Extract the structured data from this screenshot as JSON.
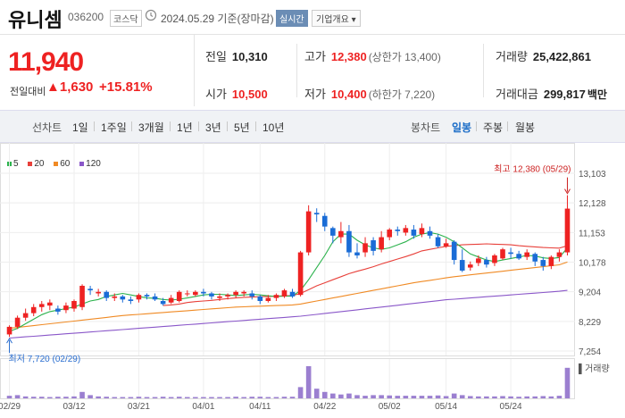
{
  "header": {
    "name": "유니셈",
    "code": "036200",
    "market": "코스닥",
    "date": "2024.05.29",
    "basis": "기준(장마감)",
    "live_label": "실시간",
    "info_label": "기업개요 ▾"
  },
  "price": {
    "current": "11,940",
    "vs_label": "전일대비",
    "change": "▲1,630",
    "pct": "+15.81%"
  },
  "stats": {
    "prev_label": "전일",
    "prev": "10,310",
    "open_label": "시가",
    "open": "10,500",
    "high_label": "고가",
    "high": "12,380",
    "high_note": "(상한가 13,400)",
    "low_label": "저가",
    "low": "10,400",
    "low_note": "(하한가 7,220)",
    "volume_label": "거래량",
    "volume": "25,422,861",
    "amount_label": "거래대금",
    "amount": "299,817",
    "amount_unit": "백만"
  },
  "period_tabs": {
    "lead": "선차트",
    "items": [
      "1일",
      "1주일",
      "3개월",
      "1년",
      "3년",
      "5년",
      "10년"
    ],
    "lead2": "봉차트",
    "items2": [
      "일봉",
      "주봉",
      "월봉"
    ],
    "active2": "일봉"
  },
  "chart_data": {
    "type": "candlestick",
    "legend": [
      {
        "name": "5",
        "color": "#2bb24c"
      },
      {
        "name": "20",
        "color": "#e8403a"
      },
      {
        "name": "60",
        "color": "#f08a24"
      },
      {
        "name": "120",
        "color": "#8a57c9"
      }
    ],
    "y_ticks": [
      "13,103",
      "12,128",
      "11,153",
      "10,178",
      "9,204",
      "8,229",
      "7,254"
    ],
    "x_ticks": [
      "02/29",
      "03/12",
      "03/21",
      "04/01",
      "04/11",
      "04/22",
      "05/02",
      "05/14",
      "05/24"
    ],
    "ylim": [
      7254,
      13103
    ],
    "high_annotation": "최고 12,380 (05/29)",
    "low_annotation": "최저 7,720 (02/29)",
    "volume_label": "거래량",
    "candles": [
      [
        7800,
        8050,
        7720,
        8100
      ],
      [
        8050,
        8350,
        7980,
        8420
      ],
      [
        8350,
        8500,
        8250,
        8650
      ],
      [
        8500,
        8700,
        8400,
        8800
      ],
      [
        8700,
        8800,
        8550,
        8900
      ],
      [
        8750,
        8850,
        8600,
        8950
      ],
      [
        8650,
        8550,
        8450,
        8750
      ],
      [
        8600,
        8750,
        8500,
        8850
      ],
      [
        8650,
        8900,
        8550,
        8950
      ],
      [
        8700,
        9400,
        8600,
        9450
      ],
      [
        9300,
        9250,
        9100,
        9400
      ],
      [
        9150,
        9200,
        9050,
        9300
      ],
      [
        9200,
        9000,
        8900,
        9250
      ],
      [
        9000,
        9050,
        8900,
        9150
      ],
      [
        9050,
        8950,
        8850,
        9100
      ],
      [
        8950,
        8900,
        8800,
        9050
      ],
      [
        8950,
        9100,
        8850,
        9150
      ],
      [
        9100,
        9050,
        8950,
        9150
      ],
      [
        9050,
        8950,
        8900,
        9150
      ],
      [
        8900,
        8800,
        8750,
        9000
      ],
      [
        8850,
        9000,
        8800,
        9100
      ],
      [
        8900,
        9200,
        8850,
        9250
      ],
      [
        9150,
        9150,
        9050,
        9250
      ],
      [
        9100,
        9200,
        9050,
        9250
      ],
      [
        9200,
        9150,
        9050,
        9300
      ],
      [
        9150,
        9050,
        8950,
        9200
      ],
      [
        9000,
        9050,
        8900,
        9150
      ],
      [
        9050,
        9100,
        8950,
        9150
      ],
      [
        9100,
        9200,
        9000,
        9250
      ],
      [
        9150,
        9200,
        9050,
        9250
      ],
      [
        9150,
        9050,
        8950,
        9250
      ],
      [
        9050,
        8900,
        8800,
        9100
      ],
      [
        8900,
        9000,
        8850,
        9100
      ],
      [
        9000,
        9100,
        8900,
        9150
      ],
      [
        9050,
        9250,
        9000,
        9300
      ],
      [
        9200,
        9050,
        9000,
        9300
      ],
      [
        9100,
        10500,
        9050,
        10550
      ],
      [
        10500,
        11850,
        10400,
        12050
      ],
      [
        11800,
        11750,
        11500,
        11950
      ],
      [
        11700,
        11350,
        11200,
        11800
      ],
      [
        11300,
        11050,
        10800,
        11350
      ],
      [
        11000,
        11200,
        10800,
        11500
      ],
      [
        11200,
        10500,
        10350,
        11400
      ],
      [
        10500,
        10400,
        10300,
        10800
      ],
      [
        10500,
        10800,
        10350,
        11000
      ],
      [
        10900,
        10550,
        10400,
        11000
      ],
      [
        10600,
        11000,
        10500,
        11200
      ],
      [
        11000,
        11250,
        10900,
        11300
      ],
      [
        11250,
        11200,
        11050,
        11350
      ],
      [
        11150,
        11300,
        11050,
        11400
      ],
      [
        11250,
        11050,
        10950,
        11400
      ],
      [
        11100,
        11300,
        11000,
        11450
      ],
      [
        11200,
        11050,
        10950,
        11350
      ],
      [
        11000,
        10700,
        10650,
        11100
      ],
      [
        10700,
        10800,
        10650,
        10950
      ],
      [
        10850,
        10250,
        10100,
        10900
      ],
      [
        10250,
        9900,
        9850,
        10600
      ],
      [
        10000,
        10100,
        9900,
        10200
      ],
      [
        10150,
        10300,
        10050,
        10400
      ],
      [
        10250,
        10100,
        10000,
        10350
      ],
      [
        10150,
        10400,
        10050,
        10450
      ],
      [
        10300,
        10600,
        10250,
        10650
      ],
      [
        10500,
        10450,
        10300,
        10650
      ],
      [
        10450,
        10300,
        10250,
        10550
      ],
      [
        10350,
        10500,
        10250,
        10600
      ],
      [
        10450,
        10200,
        10050,
        10500
      ],
      [
        10250,
        10050,
        9900,
        10350
      ],
      [
        10050,
        10350,
        9950,
        10400
      ],
      [
        10350,
        10500,
        10200,
        10600
      ],
      [
        10500,
        11940,
        10400,
        12380
      ]
    ],
    "ma5": [
      7900,
      8000,
      8150,
      8300,
      8450,
      8550,
      8600,
      8650,
      8700,
      8800,
      8900,
      8950,
      9050,
      9100,
      9150,
      9100,
      9050,
      9000,
      8990,
      8950,
      8930,
      8960,
      9000,
      9050,
      9100,
      9120,
      9120,
      9100,
      9080,
      9100,
      9120,
      9100,
      9070,
      9050,
      9060,
      9060,
      9250,
      9600,
      10000,
      10400,
      10850,
      11100,
      11100,
      10900,
      10750,
      10650,
      10600,
      10650,
      10750,
      10850,
      11000,
      11100,
      11150,
      11100,
      11000,
      10850,
      10650,
      10450,
      10350,
      10250,
      10200,
      10250,
      10300,
      10350,
      10400,
      10380,
      10320,
      10300,
      10330,
      10650
    ],
    "ma20": [
      null,
      null,
      null,
      null,
      null,
      null,
      null,
      null,
      null,
      null,
      null,
      null,
      null,
      null,
      null,
      null,
      null,
      null,
      null,
      8750,
      8770,
      8800,
      8850,
      8880,
      8900,
      8920,
      8950,
      8980,
      9000,
      9020,
      9030,
      9040,
      9050,
      9060,
      9070,
      9080,
      9150,
      9270,
      9400,
      9500,
      9600,
      9700,
      9800,
      9880,
      9950,
      10030,
      10120,
      10200,
      10280,
      10360,
      10450,
      10550,
      10600,
      10650,
      10700,
      10720,
      10750,
      10760,
      10770,
      10780,
      10770,
      10760,
      10750,
      10720,
      10700,
      10680,
      10660,
      10650,
      10640,
      10720
    ],
    "ma60": [
      8000,
      8030,
      8060,
      8090,
      8120,
      8150,
      8180,
      8210,
      8240,
      8270,
      8300,
      8330,
      8360,
      8390,
      8420,
      8440,
      8460,
      8480,
      8500,
      8520,
      8540,
      8560,
      8580,
      8600,
      8620,
      8640,
      8660,
      8680,
      8700,
      8710,
      8720,
      8730,
      8740,
      8750,
      8760,
      8770,
      8800,
      8850,
      8900,
      8950,
      9000,
      9050,
      9100,
      9150,
      9200,
      9250,
      9300,
      9350,
      9400,
      9450,
      9500,
      9540,
      9580,
      9620,
      9660,
      9700,
      9730,
      9760,
      9790,
      9820,
      9850,
      9880,
      9910,
      9940,
      9970,
      10000,
      10030,
      10060,
      10090,
      10180
    ],
    "ma120": [
      7680,
      7700,
      7720,
      7740,
      7760,
      7780,
      7800,
      7820,
      7840,
      7860,
      7880,
      7900,
      7920,
      7940,
      7960,
      7980,
      8000,
      8020,
      8040,
      8060,
      8080,
      8100,
      8120,
      8140,
      8160,
      8180,
      8200,
      8220,
      8240,
      8260,
      8280,
      8300,
      8320,
      8340,
      8360,
      8380,
      8400,
      8430,
      8460,
      8490,
      8520,
      8550,
      8580,
      8610,
      8640,
      8670,
      8700,
      8730,
      8760,
      8790,
      8820,
      8850,
      8880,
      8910,
      8940,
      8960,
      8980,
      9000,
      9020,
      9040,
      9060,
      9080,
      9100,
      9120,
      9140,
      9160,
      9180,
      9200,
      9220,
      9250
    ],
    "volume": [
      0.08,
      0.1,
      0.06,
      0.05,
      0.05,
      0.04,
      0.05,
      0.05,
      0.06,
      0.2,
      0.1,
      0.06,
      0.05,
      0.04,
      0.04,
      0.04,
      0.05,
      0.04,
      0.04,
      0.05,
      0.04,
      0.05,
      0.04,
      0.04,
      0.04,
      0.04,
      0.04,
      0.04,
      0.05,
      0.04,
      0.05,
      0.05,
      0.04,
      0.04,
      0.05,
      0.05,
      0.35,
      1.0,
      0.3,
      0.2,
      0.15,
      0.12,
      0.15,
      0.1,
      0.08,
      0.1,
      0.1,
      0.09,
      0.08,
      0.08,
      0.08,
      0.08,
      0.08,
      0.09,
      0.07,
      0.15,
      0.1,
      0.07,
      0.06,
      0.06,
      0.06,
      0.07,
      0.06,
      0.05,
      0.06,
      0.06,
      0.07,
      0.06,
      0.08,
      0.95
    ]
  }
}
